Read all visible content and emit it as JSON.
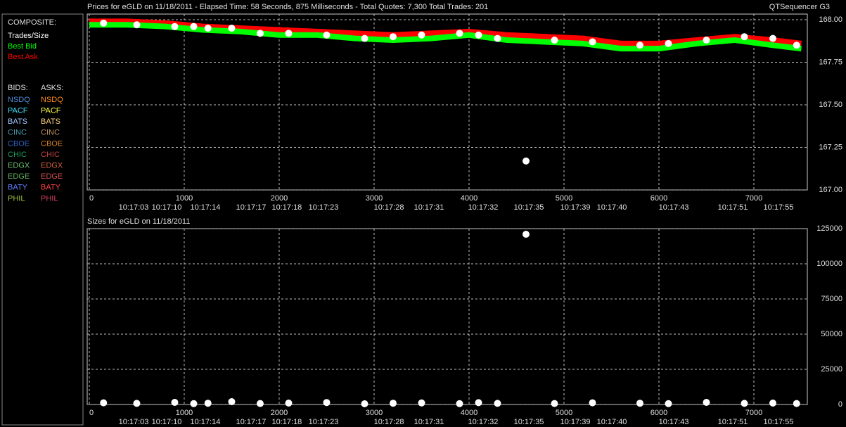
{
  "header": {
    "app": "QTSequencer G3"
  },
  "legend": {
    "composite_title": "COMPOSITE:",
    "bids_title": "BIDS:",
    "asks_title": "ASKS:",
    "exchanges": [
      {
        "bid": "NSDQ",
        "bid_color": "#4f8fe0",
        "ask": "NSDQ",
        "ask_color": "#ff8c20"
      },
      {
        "bid": "PACF",
        "bid_color": "#40e0ff",
        "ask": "PACF",
        "ask_color": "#ffff40"
      },
      {
        "bid": "BATS",
        "bid_color": "#a0c8ff",
        "ask": "BATS",
        "ask_color": "#ffd080"
      },
      {
        "bid": "CINC",
        "bid_color": "#4a9bb0",
        "ask": "CINC",
        "ask_color": "#c09060"
      },
      {
        "bid": "CBOE",
        "bid_color": "#3060c0",
        "ask": "CBOE",
        "ask_color": "#d08020"
      },
      {
        "bid": "CHIC",
        "bid_color": "#20a060",
        "ask": "CHIC",
        "ask_color": "#c04040"
      },
      {
        "bid": "EDGX",
        "bid_color": "#70c070",
        "ask": "EDGX",
        "ask_color": "#d06040"
      },
      {
        "bid": "EDGE",
        "bid_color": "#60b060",
        "ask": "EDGE",
        "ask_color": "#d05050"
      },
      {
        "bid": "BATY",
        "bid_color": "#6080ff",
        "ask": "BATY",
        "ask_color": "#ff4040"
      },
      {
        "bid": "PHIL",
        "bid_color": "#a0c040",
        "ask": "PHIL",
        "ask_color": "#d04060"
      }
    ]
  },
  "chart_data": [
    {
      "type": "line",
      "title": "Prices for  eGLD  on  11/18/2011  -  Elapsed Time: 58 Seconds, 875 Milliseconds  -  Total Quotes: 7,300  Total Trades: 201",
      "xlim": [
        -22,
        7563
      ],
      "xticks": [
        0,
        1000,
        2000,
        3000,
        4000,
        5000,
        6000,
        7000
      ],
      "time_ticks": [
        {
          "value": 467,
          "label": "10:17:03"
        },
        {
          "value": 815,
          "label": "10:17:10"
        },
        {
          "value": 1222,
          "label": "10:17:14"
        },
        {
          "value": 1704,
          "label": "10:17:17"
        },
        {
          "value": 2081,
          "label": "10:17:18"
        },
        {
          "value": 2467,
          "label": "10:17:23"
        },
        {
          "value": 3156,
          "label": "10:17:28"
        },
        {
          "value": 3578,
          "label": "10:17:31"
        },
        {
          "value": 4148,
          "label": "10:17:32"
        },
        {
          "value": 4630,
          "label": "10:17:35"
        },
        {
          "value": 5119,
          "label": "10:17:39"
        },
        {
          "value": 5504,
          "label": "10:17:40"
        },
        {
          "value": 6156,
          "label": "10:17:43"
        },
        {
          "value": 6778,
          "label": "10:17:51"
        },
        {
          "value": 7259,
          "label": "10:17:55"
        }
      ],
      "ylim": [
        167,
        168.033
      ],
      "yticks": [
        {
          "value": 167,
          "label": "167.00"
        },
        {
          "value": 167.25,
          "label": "167.25"
        },
        {
          "value": 167.5,
          "label": "167.50"
        },
        {
          "value": 167.75,
          "label": "167.75"
        },
        {
          "value": 168,
          "label": "168.00"
        }
      ],
      "grid": true,
      "series": [
        {
          "name": "Best Ask",
          "color": "#ff0000",
          "mode": "line",
          "x": [
            0,
            400,
            800,
            1200,
            1600,
            2000,
            2400,
            2800,
            3200,
            3600,
            4000,
            4400,
            4800,
            5200,
            5600,
            6000,
            6400,
            6800,
            7200,
            7500
          ],
          "values": [
            167.99,
            167.99,
            167.98,
            167.96,
            167.95,
            167.94,
            167.93,
            167.92,
            167.91,
            167.92,
            167.93,
            167.91,
            167.9,
            167.89,
            167.86,
            167.86,
            167.88,
            167.9,
            167.88,
            167.86
          ]
        },
        {
          "name": "Best Bid",
          "color": "#00ff00",
          "mode": "line",
          "x": [
            0,
            400,
            800,
            1200,
            1600,
            2000,
            2400,
            2800,
            3200,
            3600,
            4000,
            4400,
            4800,
            5200,
            5600,
            6000,
            6400,
            6800,
            7200,
            7500
          ],
          "values": [
            167.97,
            167.97,
            167.96,
            167.94,
            167.93,
            167.91,
            167.91,
            167.89,
            167.88,
            167.89,
            167.91,
            167.88,
            167.87,
            167.86,
            167.83,
            167.83,
            167.86,
            167.88,
            167.85,
            167.83
          ]
        },
        {
          "name": "Trades/Size",
          "color": "#ffffff",
          "mode": "points",
          "x": [
            150,
            500,
            900,
            1100,
            1250,
            1500,
            1800,
            2100,
            2500,
            2900,
            3200,
            3500,
            3900,
            4100,
            4300,
            4600,
            4900,
            5300,
            5800,
            6100,
            6500,
            6900,
            7200,
            7450
          ],
          "values": [
            167.98,
            167.97,
            167.96,
            167.96,
            167.95,
            167.95,
            167.92,
            167.92,
            167.91,
            167.89,
            167.9,
            167.91,
            167.92,
            167.91,
            167.89,
            167.17,
            167.88,
            167.87,
            167.85,
            167.86,
            167.88,
            167.9,
            167.89,
            167.85
          ]
        }
      ]
    },
    {
      "type": "scatter",
      "title": "Sizes for  eGLD  on  11/18/2011",
      "xlim": [
        -22,
        7563
      ],
      "xticks": [
        0,
        1000,
        2000,
        3000,
        4000,
        5000,
        6000,
        7000
      ],
      "time_ticks": [
        {
          "value": 467,
          "label": "10:17:03"
        },
        {
          "value": 815,
          "label": "10:17:10"
        },
        {
          "value": 1222,
          "label": "10:17:14"
        },
        {
          "value": 1704,
          "label": "10:17:17"
        },
        {
          "value": 2081,
          "label": "10:17:18"
        },
        {
          "value": 2467,
          "label": "10:17:23"
        },
        {
          "value": 3156,
          "label": "10:17:28"
        },
        {
          "value": 3578,
          "label": "10:17:31"
        },
        {
          "value": 4148,
          "label": "10:17:32"
        },
        {
          "value": 4630,
          "label": "10:17:35"
        },
        {
          "value": 5119,
          "label": "10:17:39"
        },
        {
          "value": 5504,
          "label": "10:17:40"
        },
        {
          "value": 6156,
          "label": "10:17:43"
        },
        {
          "value": 6778,
          "label": "10:17:51"
        },
        {
          "value": 7259,
          "label": "10:17:55"
        }
      ],
      "ylim": [
        0,
        125000
      ],
      "yticks": [
        0,
        25000,
        50000,
        75000,
        100000,
        125000
      ],
      "grid": true,
      "series": [
        {
          "color": "#ffffff",
          "mode": "points",
          "x": [
            150,
            500,
            900,
            1100,
            1250,
            1500,
            1800,
            2100,
            2500,
            2900,
            3200,
            3500,
            3900,
            4100,
            4300,
            4600,
            4900,
            5300,
            5800,
            6100,
            6500,
            6900,
            7200,
            7450
          ],
          "values": [
            1200,
            800,
            1500,
            600,
            900,
            2000,
            700,
            1000,
            1400,
            500,
            900,
            1100,
            600,
            1300,
            800,
            121000,
            700,
            1200,
            900,
            600,
            1500,
            800,
            1000,
            700
          ]
        }
      ]
    }
  ]
}
